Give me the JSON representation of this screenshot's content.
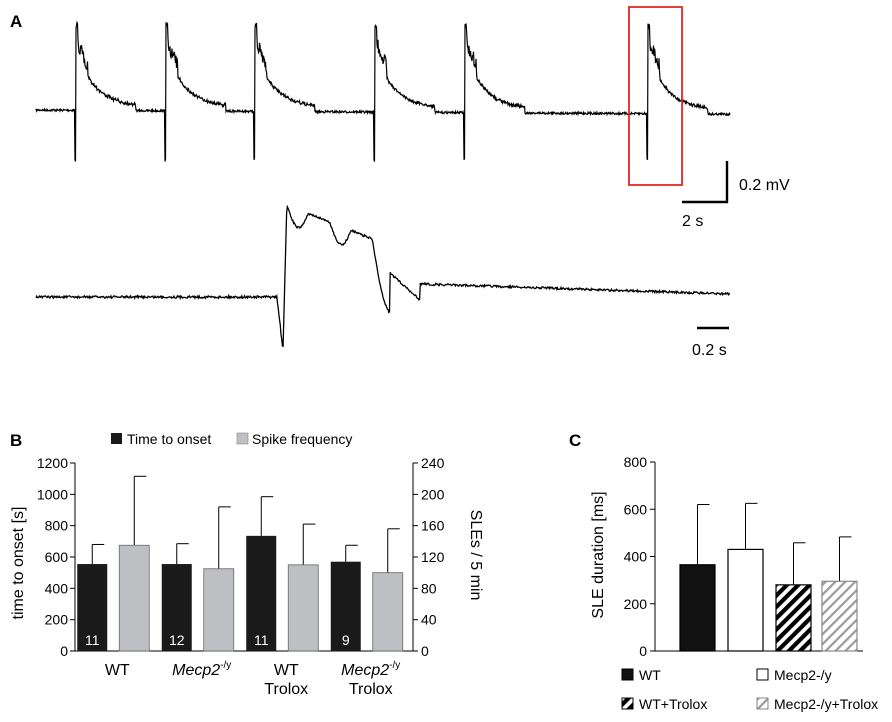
{
  "panels": {
    "A": {
      "label": "A",
      "scale_voltage": "0.2 mV",
      "scale_time_top": "2 s",
      "scale_time_bottom": "0.2 s"
    }
  },
  "colors": {
    "black_bar": "#1a1a1a",
    "gray_bar": "#bdbfc2",
    "highlight_box": "#e32626",
    "trace": "#000000"
  },
  "chart_data": [
    {
      "panel": "B",
      "type": "bar",
      "label": "B",
      "legend": [
        "Time to onset",
        "Spike frequency"
      ],
      "categories": [
        {
          "line1": "WT",
          "line2": "",
          "sup": "",
          "italic": false
        },
        {
          "line1": "Mecp2",
          "line2": "",
          "sup": "-/y",
          "italic": true
        },
        {
          "line1": "WT",
          "line2": "Trolox",
          "sup": "",
          "italic": false
        },
        {
          "line1": "Mecp2",
          "line2": "Trolox",
          "sup": "-/y",
          "italic": true
        }
      ],
      "series": [
        {
          "name": "Time to onset",
          "axis": "left",
          "values": [
            555,
            555,
            735,
            570
          ],
          "errors": [
            125,
            130,
            250,
            105
          ],
          "n_labels": [
            "11",
            "12",
            "11",
            "9"
          ]
        },
        {
          "name": "Spike frequency",
          "axis": "right",
          "values": [
            135,
            105,
            110,
            100
          ],
          "errors": [
            88,
            79,
            52,
            56
          ]
        }
      ],
      "ylabel": "time to onset [s]",
      "y2label": "SLEs / 5 min",
      "ylim": [
        0,
        1200
      ],
      "y2lim": [
        0,
        240
      ],
      "yticks": [
        0,
        200,
        400,
        600,
        800,
        1000,
        1200
      ],
      "y2ticks": [
        0,
        40,
        80,
        120,
        160,
        200,
        240
      ]
    },
    {
      "panel": "C",
      "type": "bar",
      "label": "C",
      "categories": [
        "WT",
        "Mecp2-/y",
        "WT+Trolox",
        "Mecp2-/y+Trolox"
      ],
      "values": [
        365,
        430,
        280,
        295
      ],
      "errors": [
        255,
        195,
        178,
        188
      ],
      "fills": [
        "solid",
        "empty",
        "hatch-black",
        "hatch-gray"
      ],
      "ylabel": "SLE duration [ms]",
      "ylim": [
        0,
        800
      ],
      "yticks": [
        0,
        200,
        400,
        600,
        800
      ]
    }
  ]
}
